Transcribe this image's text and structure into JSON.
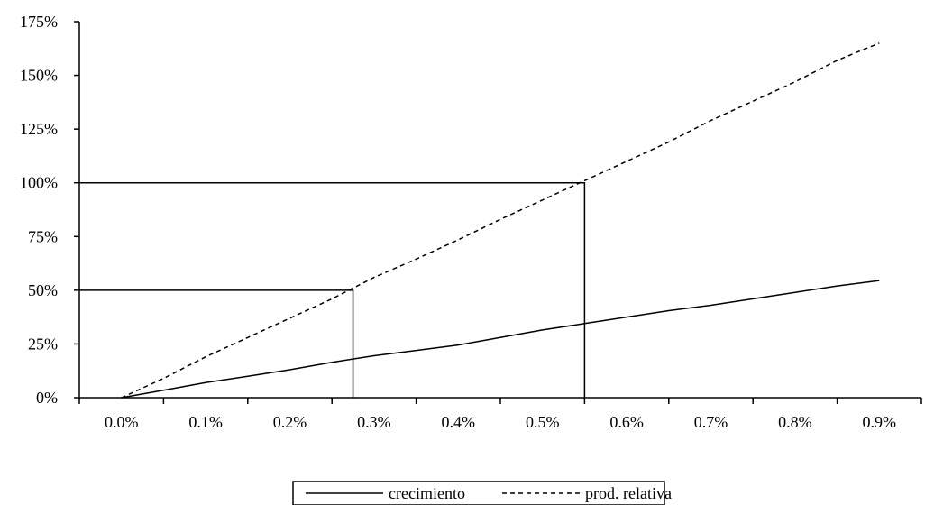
{
  "chart_data": {
    "type": "line",
    "title": "",
    "xlabel": "",
    "ylabel": "",
    "x_tick_labels": [
      "0.0%",
      "0.1%",
      "0.2%",
      "0.3%",
      "0.4%",
      "0.5%",
      "0.6%",
      "0.7%",
      "0.8%",
      "0.9%"
    ],
    "y_tick_labels": [
      "0%",
      "25%",
      "50%",
      "75%",
      "100%",
      "125%",
      "150%",
      "175%"
    ],
    "y_ticks": [
      0,
      25,
      50,
      75,
      100,
      125,
      150,
      175
    ],
    "ylim": [
      0,
      175
    ],
    "grid": false,
    "legend_position": "bottom-center",
    "series": [
      {
        "name": "crecimiento",
        "style": "solid",
        "color": "#000000",
        "x": [
          0.0,
          0.05,
          0.1,
          0.15,
          0.2,
          0.25,
          0.3,
          0.35,
          0.4,
          0.45,
          0.5,
          0.55,
          0.6,
          0.65,
          0.7,
          0.75,
          0.8,
          0.85,
          0.9
        ],
        "y": [
          0,
          3.5,
          7,
          10,
          13,
          16.5,
          19.5,
          22,
          24.5,
          28,
          31.5,
          34.5,
          37.5,
          40.5,
          43,
          46,
          49,
          52,
          54.5
        ]
      },
      {
        "name": "prod. relativa",
        "style": "dashed",
        "color": "#000000",
        "x": [
          0.0,
          0.05,
          0.1,
          0.15,
          0.2,
          0.25,
          0.3,
          0.35,
          0.4,
          0.45,
          0.5,
          0.55,
          0.6,
          0.65,
          0.7,
          0.75,
          0.8,
          0.85,
          0.9
        ],
        "y": [
          0,
          9,
          19,
          28,
          37,
          46,
          56,
          64.5,
          73.5,
          83,
          92,
          101,
          110,
          119,
          129,
          138,
          147,
          157,
          165
        ]
      }
    ],
    "reference_lines": [
      {
        "x": 0.275,
        "y": 50
      },
      {
        "x": 0.55,
        "y": 100
      }
    ]
  }
}
